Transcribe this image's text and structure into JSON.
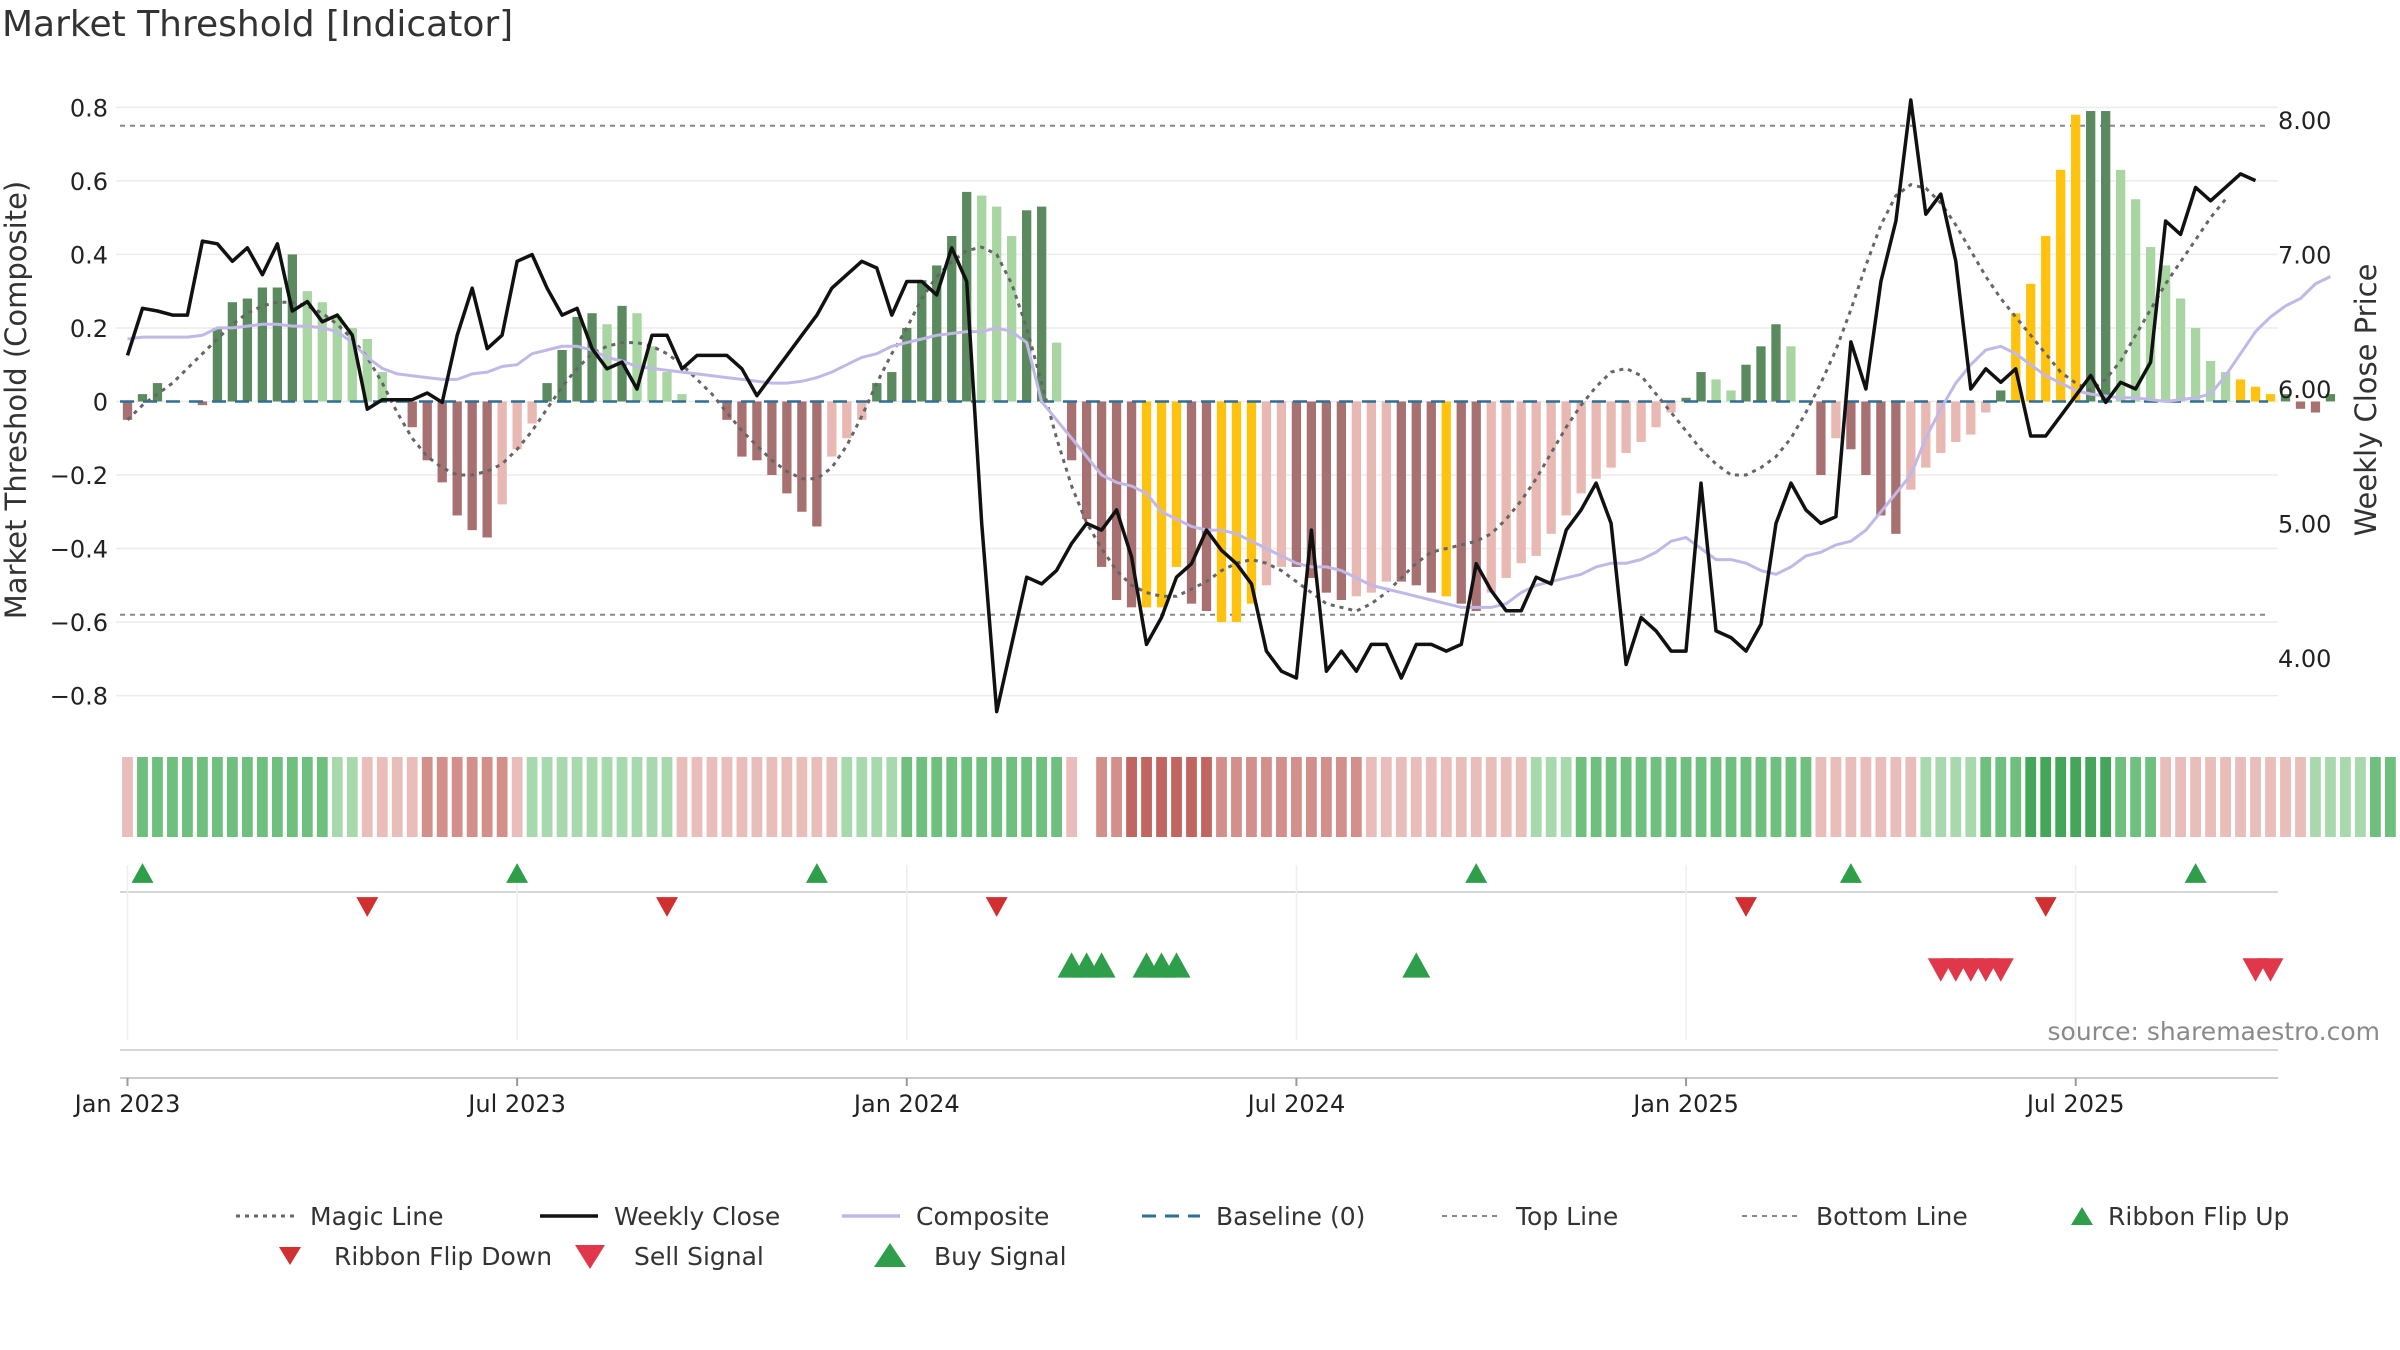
{
  "title": "Market Threshold [Indicator]",
  "source": "source: sharemaestro.com",
  "colors": {
    "bar_green_dark": "#5b8a5f",
    "bar_green_light": "#a8d5a2",
    "bar_red_dark": "#a87171",
    "bar_red_light": "#e8b8b2",
    "bar_gold": "#ffc20e",
    "weekly_close": "#111111",
    "composite": "#c2b8e8",
    "magic_line": "#666666",
    "baseline": "#2e6f95",
    "threshold_line": "#888888",
    "up_marker": "#2e9e4a",
    "down_marker": "#d0302f",
    "sell_marker": "#e0384a"
  },
  "chart_data": {
    "type": "bar",
    "title": "Market Threshold [Indicator]",
    "ylabel": "Market Threshold (Composite)",
    "y2label": "Weekly Close Price",
    "ylim": [
      -0.88,
      0.82
    ],
    "y2lim": [
      3.5,
      8.15
    ],
    "yticks": [
      {
        "v": 0.8,
        "label": "0.8"
      },
      {
        "v": 0.6,
        "label": "0.6"
      },
      {
        "v": 0.4,
        "label": "0.4"
      },
      {
        "v": 0.2,
        "label": "0.2"
      },
      {
        "v": 0,
        "label": "0"
      },
      {
        "v": -0.2,
        "label": "−0.2"
      },
      {
        "v": -0.4,
        "label": "−0.4"
      },
      {
        "v": -0.6,
        "label": "−0.6"
      },
      {
        "v": -0.8,
        "label": "−0.8"
      }
    ],
    "y2ticks": [
      {
        "v": 8,
        "label": "8.00"
      },
      {
        "v": 7,
        "label": "7.00"
      },
      {
        "v": 6,
        "label": "6.00"
      },
      {
        "v": 5,
        "label": "5.00"
      },
      {
        "v": 4,
        "label": "4.00"
      }
    ],
    "xticks": [
      {
        "w": 0.5,
        "label": "Jan 2023"
      },
      {
        "w": 26.5,
        "label": "Jul 2023"
      },
      {
        "w": 52.5,
        "label": "Jan 2024"
      },
      {
        "w": 78.5,
        "label": "Jul 2024"
      },
      {
        "w": 104.5,
        "label": "Jan 2025"
      },
      {
        "w": 130.5,
        "label": "Jul 2025"
      }
    ],
    "weeks": 144,
    "top_line": 0.75,
    "bottom_line": -0.58,
    "composite_bars": [
      -0.05,
      0.02,
      0.05,
      0.0,
      0.0,
      -0.01,
      0.2,
      0.27,
      0.28,
      0.31,
      0.31,
      0.4,
      0.3,
      0.27,
      0.23,
      0.2,
      0.17,
      0.08,
      0.0,
      -0.07,
      -0.16,
      -0.22,
      -0.31,
      -0.35,
      -0.37,
      -0.28,
      -0.13,
      -0.06,
      0.05,
      0.14,
      0.23,
      0.24,
      0.21,
      0.26,
      0.24,
      0.15,
      0.08,
      0.02,
      0.0,
      0.0,
      -0.05,
      -0.15,
      -0.16,
      -0.2,
      -0.25,
      -0.3,
      -0.34,
      -0.15,
      -0.1,
      -0.05,
      0.05,
      0.08,
      0.2,
      0.33,
      0.37,
      0.45,
      0.57,
      0.56,
      0.53,
      0.45,
      0.52,
      0.53,
      0.16,
      -0.16,
      -0.32,
      -0.45,
      -0.54,
      -0.56,
      -0.56,
      -0.56,
      -0.45,
      -0.55,
      -0.57,
      -0.6,
      -0.6,
      -0.55,
      -0.5,
      -0.45,
      -0.45,
      -0.48,
      -0.52,
      -0.54,
      -0.53,
      -0.52,
      -0.49,
      -0.49,
      -0.5,
      -0.52,
      -0.53,
      -0.55,
      -0.57,
      -0.52,
      -0.48,
      -0.44,
      -0.42,
      -0.36,
      -0.31,
      -0.25,
      -0.21,
      -0.18,
      -0.14,
      -0.11,
      -0.07,
      -0.03,
      0.01,
      0.08,
      0.06,
      0.03,
      0.1,
      0.15,
      0.21,
      0.15,
      0.0,
      -0.2,
      -0.1,
      -0.13,
      -0.2,
      -0.31,
      -0.36,
      -0.24,
      -0.18,
      -0.14,
      -0.11,
      -0.09,
      -0.03,
      0.03,
      0.24,
      0.32,
      0.45,
      0.63,
      0.78,
      0.79,
      0.79,
      0.63,
      0.55,
      0.42,
      0.37,
      0.28,
      0.2,
      0.11,
      0.08,
      0.06,
      0.04,
      0.02,
      0.02,
      -0.02,
      -0.03,
      0.02
    ],
    "bar_gold": [
      68,
      69,
      70,
      73,
      74,
      75,
      88,
      126,
      127,
      128,
      129,
      130,
      141,
      142,
      143
    ],
    "weekly_close": [
      6.25,
      6.6,
      6.58,
      6.55,
      6.55,
      7.1,
      7.08,
      6.95,
      7.05,
      6.85,
      7.08,
      6.58,
      6.65,
      6.5,
      6.55,
      6.4,
      5.85,
      5.92,
      5.92,
      5.92,
      5.97,
      5.9,
      6.4,
      6.75,
      6.3,
      6.4,
      6.95,
      7.0,
      6.75,
      6.55,
      6.6,
      6.3,
      6.15,
      6.2,
      6.0,
      6.4,
      6.4,
      6.15,
      6.25,
      6.25,
      6.25,
      6.15,
      5.95,
      6.1,
      6.25,
      6.4,
      6.55,
      6.75,
      6.85,
      6.95,
      6.9,
      6.55,
      6.8,
      6.8,
      6.7,
      7.05,
      6.8,
      5.0,
      3.6,
      4.1,
      4.6,
      4.55,
      4.65,
      4.85,
      5.0,
      4.95,
      5.1,
      4.75,
      4.1,
      4.3,
      4.6,
      4.7,
      4.95,
      4.8,
      4.7,
      4.55,
      4.05,
      3.9,
      3.85,
      4.95,
      3.9,
      4.05,
      3.9,
      4.1,
      4.1,
      3.85,
      4.1,
      4.1,
      4.05,
      4.1,
      4.7,
      4.5,
      4.35,
      4.35,
      4.6,
      4.55,
      4.95,
      5.1,
      5.3,
      5.0,
      3.95,
      4.3,
      4.2,
      4.05,
      4.05,
      5.3,
      4.2,
      4.15,
      4.05,
      4.25,
      5.0,
      5.3,
      5.1,
      5.0,
      5.05,
      6.35,
      6.0,
      6.8,
      7.25,
      8.15,
      7.3,
      7.45,
      6.95,
      6.0,
      6.15,
      6.05,
      6.15,
      5.65,
      5.65,
      5.8,
      5.95,
      6.1,
      5.9,
      6.05,
      6.0,
      6.2,
      7.25,
      7.15,
      7.5,
      7.4,
      7.5,
      7.6,
      7.55
    ],
    "composite_line": [
      0.17,
      0.175,
      0.175,
      0.175,
      0.175,
      0.18,
      0.2,
      0.2,
      0.205,
      0.21,
      0.21,
      0.205,
      0.205,
      0.2,
      0.19,
      0.16,
      0.12,
      0.09,
      0.075,
      0.07,
      0.065,
      0.06,
      0.06,
      0.075,
      0.08,
      0.095,
      0.1,
      0.13,
      0.14,
      0.15,
      0.15,
      0.14,
      0.12,
      0.11,
      0.095,
      0.09,
      0.085,
      0.08,
      0.075,
      0.07,
      0.065,
      0.06,
      0.055,
      0.05,
      0.05,
      0.055,
      0.065,
      0.08,
      0.1,
      0.12,
      0.13,
      0.15,
      0.16,
      0.17,
      0.18,
      0.185,
      0.19,
      0.19,
      0.2,
      0.19,
      0.16,
      0.0,
      -0.05,
      -0.1,
      -0.15,
      -0.2,
      -0.22,
      -0.23,
      -0.25,
      -0.3,
      -0.32,
      -0.34,
      -0.35,
      -0.35,
      -0.36,
      -0.38,
      -0.4,
      -0.42,
      -0.44,
      -0.45,
      -0.45,
      -0.46,
      -0.48,
      -0.5,
      -0.51,
      -0.52,
      -0.53,
      -0.54,
      -0.55,
      -0.56,
      -0.56,
      -0.56,
      -0.55,
      -0.52,
      -0.5,
      -0.49,
      -0.48,
      -0.47,
      -0.45,
      -0.44,
      -0.44,
      -0.43,
      -0.41,
      -0.38,
      -0.37,
      -0.4,
      -0.43,
      -0.43,
      -0.44,
      -0.46,
      -0.47,
      -0.45,
      -0.42,
      -0.41,
      -0.39,
      -0.38,
      -0.35,
      -0.3,
      -0.25,
      -0.2,
      -0.1,
      -0.02,
      0.05,
      0.1,
      0.14,
      0.15,
      0.13,
      0.1,
      0.07,
      0.05,
      0.03,
      0.02,
      0.015,
      0.01,
      0.01,
      0.005,
      0.0,
      0.005,
      0.01,
      0.02,
      0.07,
      0.13,
      0.19,
      0.23,
      0.26,
      0.28,
      0.32,
      0.34
    ],
    "magic_line": [
      -0.05,
      -0.01,
      0.02,
      0.05,
      0.09,
      0.13,
      0.17,
      0.21,
      0.24,
      0.26,
      0.27,
      0.27,
      0.26,
      0.24,
      0.21,
      0.17,
      0.12,
      0.05,
      -0.03,
      -0.1,
      -0.15,
      -0.18,
      -0.2,
      -0.2,
      -0.19,
      -0.17,
      -0.13,
      -0.08,
      -0.02,
      0.04,
      0.09,
      0.13,
      0.15,
      0.16,
      0.16,
      0.15,
      0.13,
      0.1,
      0.06,
      0.02,
      -0.03,
      -0.08,
      -0.12,
      -0.16,
      -0.19,
      -0.21,
      -0.21,
      -0.18,
      -0.12,
      -0.04,
      0.05,
      0.13,
      0.2,
      0.28,
      0.34,
      0.38,
      0.41,
      0.42,
      0.4,
      0.32,
      0.2,
      0.05,
      -0.1,
      -0.23,
      -0.33,
      -0.4,
      -0.46,
      -0.5,
      -0.52,
      -0.53,
      -0.53,
      -0.51,
      -0.49,
      -0.46,
      -0.44,
      -0.43,
      -0.44,
      -0.46,
      -0.49,
      -0.52,
      -0.55,
      -0.56,
      -0.57,
      -0.55,
      -0.52,
      -0.48,
      -0.44,
      -0.41,
      -0.4,
      -0.39,
      -0.38,
      -0.36,
      -0.32,
      -0.27,
      -0.21,
      -0.14,
      -0.07,
      -0.01,
      0.04,
      0.08,
      0.09,
      0.07,
      0.02,
      -0.03,
      -0.08,
      -0.13,
      -0.17,
      -0.2,
      -0.2,
      -0.18,
      -0.15,
      -0.1,
      -0.03,
      0.05,
      0.14,
      0.25,
      0.37,
      0.48,
      0.56,
      0.59,
      0.58,
      0.54,
      0.48,
      0.41,
      0.34,
      0.28,
      0.23,
      0.18,
      0.13,
      0.08,
      0.05,
      0.03,
      0.06,
      0.11,
      0.18,
      0.25,
      0.32,
      0.38,
      0.44,
      0.5,
      0.55
    ],
    "ribbon": [
      -1,
      2,
      2,
      2,
      2,
      2,
      2,
      2,
      2,
      2,
      2,
      2,
      2,
      2,
      1,
      1,
      -1,
      -1,
      -1,
      -1,
      -2,
      -2,
      -2,
      -2,
      -2,
      -2,
      -1,
      1,
      1,
      1,
      1,
      1,
      1,
      1,
      1,
      1,
      1,
      -1,
      -1,
      -1,
      -1,
      -1,
      -1,
      -1,
      -1,
      -1,
      -1,
      -1,
      1,
      1,
      1,
      1,
      2,
      2,
      2,
      2,
      2,
      2,
      2,
      2,
      2,
      2,
      2,
      -1,
      0,
      -2,
      -2,
      -3,
      -3,
      -3,
      -3,
      -3,
      -3,
      -2,
      -2,
      -2,
      -2,
      -2,
      -2,
      -2,
      -2,
      -2,
      -2,
      -1,
      -1,
      -1,
      -1,
      -1,
      -1,
      -1,
      -1,
      -1,
      -1,
      -1,
      1,
      1,
      1,
      2,
      2,
      2,
      2,
      2,
      2,
      2,
      2,
      2,
      2,
      2,
      2,
      2,
      2,
      2,
      2,
      -1,
      -1,
      -1,
      -1,
      -1,
      -1,
      -1,
      1,
      1,
      1,
      1,
      2,
      2,
      2,
      3,
      3,
      3,
      3,
      3,
      3,
      2,
      2,
      2,
      -1,
      -1,
      -1,
      -1,
      -1,
      -1,
      -1,
      -1,
      -1,
      -1,
      1,
      1,
      1,
      1,
      2,
      2,
      2,
      2
    ],
    "ribbon_flip_up": [
      1,
      26,
      46,
      90,
      115,
      138
    ],
    "ribbon_flip_down": [
      16,
      36,
      58,
      108,
      128
    ],
    "buy_signal": [
      63,
      64,
      65,
      68,
      69,
      70,
      86
    ],
    "sell_signal": [
      121,
      122,
      123,
      124,
      125,
      142,
      143
    ],
    "legend": [
      {
        "name": "Magic Line",
        "sym": "dotted"
      },
      {
        "name": "Weekly Close",
        "sym": "solid"
      },
      {
        "name": "Composite",
        "sym": "composite"
      },
      {
        "name": "Baseline (0)",
        "sym": "dashed"
      },
      {
        "name": "Top Line",
        "sym": "thin-dotted"
      },
      {
        "name": "Bottom Line",
        "sym": "thin-dotted"
      },
      {
        "name": "Ribbon Flip Up",
        "sym": "tri-up"
      },
      {
        "name": "Ribbon Flip Down",
        "sym": "tri-down"
      },
      {
        "name": "Sell Signal",
        "sym": "sell"
      },
      {
        "name": "Buy Signal",
        "sym": "buy"
      }
    ]
  }
}
